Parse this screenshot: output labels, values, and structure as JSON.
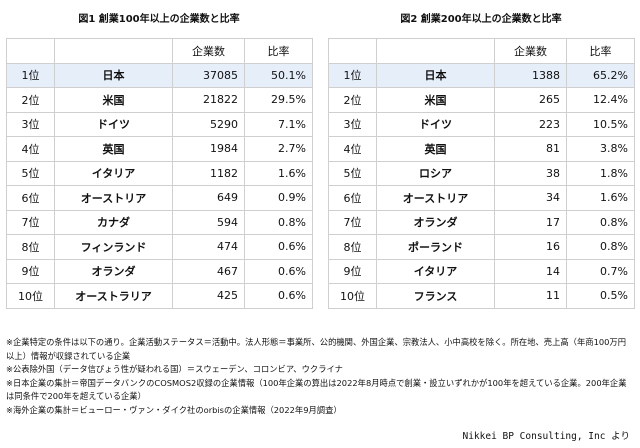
{
  "left": {
    "caption": "図1 創業100年以上の企業数と比率",
    "headers": [
      "",
      "",
      "企業数",
      "比率"
    ],
    "rows": [
      {
        "rank": "1位",
        "country": "日本",
        "count": "37085",
        "ratio": "50.1%"
      },
      {
        "rank": "2位",
        "country": "米国",
        "count": "21822",
        "ratio": "29.5%"
      },
      {
        "rank": "3位",
        "country": "ドイツ",
        "count": "5290",
        "ratio": "7.1%"
      },
      {
        "rank": "4位",
        "country": "英国",
        "count": "1984",
        "ratio": "2.7%"
      },
      {
        "rank": "5位",
        "country": "イタリア",
        "count": "1182",
        "ratio": "1.6%"
      },
      {
        "rank": "6位",
        "country": "オーストリア",
        "count": "649",
        "ratio": "0.9%"
      },
      {
        "rank": "7位",
        "country": "カナダ",
        "count": "594",
        "ratio": "0.8%"
      },
      {
        "rank": "8位",
        "country": "フィンランド",
        "count": "474",
        "ratio": "0.6%"
      },
      {
        "rank": "9位",
        "country": "オランダ",
        "count": "467",
        "ratio": "0.6%"
      },
      {
        "rank": "10位",
        "country": "オーストラリア",
        "count": "425",
        "ratio": "0.6%"
      }
    ]
  },
  "right": {
    "caption": "図2 創業200年以上の企業数と比率",
    "headers": [
      "",
      "",
      "企業数",
      "比率"
    ],
    "rows": [
      {
        "rank": "1位",
        "country": "日本",
        "count": "1388",
        "ratio": "65.2%"
      },
      {
        "rank": "2位",
        "country": "米国",
        "count": "265",
        "ratio": "12.4%"
      },
      {
        "rank": "3位",
        "country": "ドイツ",
        "count": "223",
        "ratio": "10.5%"
      },
      {
        "rank": "4位",
        "country": "英国",
        "count": "81",
        "ratio": "3.8%"
      },
      {
        "rank": "5位",
        "country": "ロシア",
        "count": "38",
        "ratio": "1.8%"
      },
      {
        "rank": "6位",
        "country": "オーストリア",
        "count": "34",
        "ratio": "1.6%"
      },
      {
        "rank": "7位",
        "country": "オランダ",
        "count": "17",
        "ratio": "0.8%"
      },
      {
        "rank": "8位",
        "country": "ポーランド",
        "count": "16",
        "ratio": "0.8%"
      },
      {
        "rank": "9位",
        "country": "イタリア",
        "count": "14",
        "ratio": "0.7%"
      },
      {
        "rank": "10位",
        "country": "フランス",
        "count": "11",
        "ratio": "0.5%"
      }
    ]
  },
  "highlight_color": "#e6eefa",
  "notes": [
    "※企業特定の条件は以下の通り。企業活動ステータス＝活動中。法人形態＝事業所、公的機関、外国企業、宗教法人、小中高校を除く。所在地、売上高（年商100万円以上）情報が収録されている企業",
    "※公表除外国（データ信ぴょう性が疑われる国）＝スウェーデン、コロンビア、ウクライナ",
    "※日本企業の集計＝帝国データバンクのCOSMOS2収録の企業情報（100年企業の算出は2022年8月時点で創業・設立いずれかが100年を超えている企業。200年企業は同条件で200年を超えている企業）",
    "※海外企業の集計＝ビューロー・ヴァン・ダイク社のorbisの企業情報（2022年9月調査）"
  ],
  "source": "Nikkei BP Consulting, Inc より"
}
